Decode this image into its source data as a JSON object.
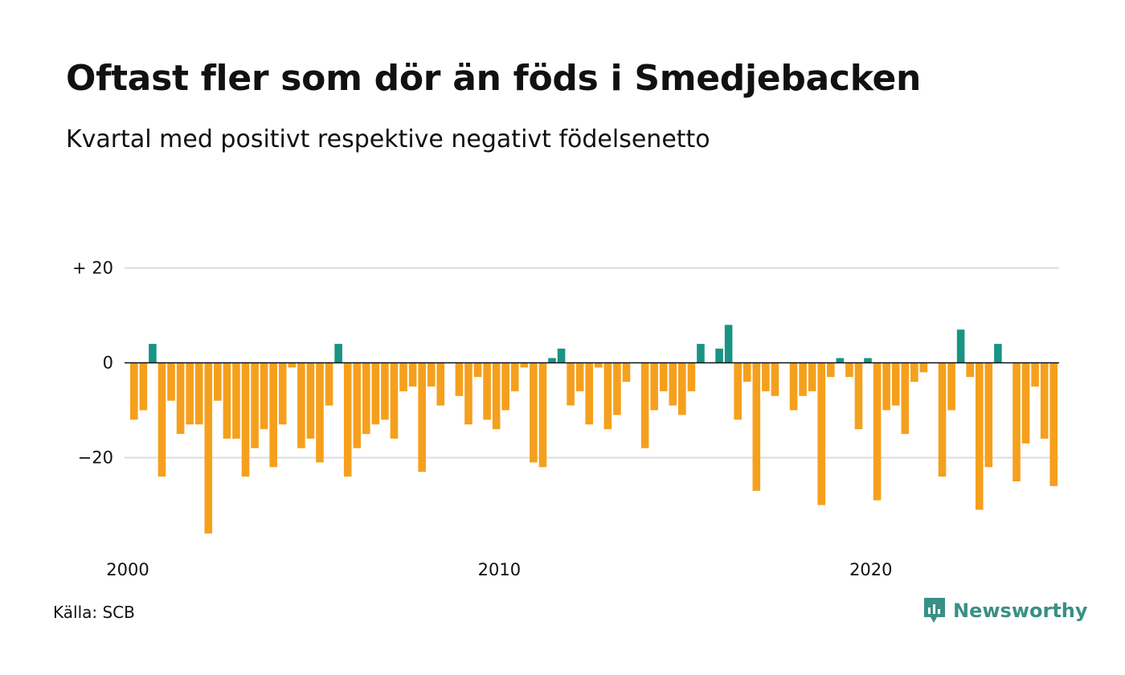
{
  "title": "Oftast fler som dör än föds i Smedjebacken",
  "subtitle": "Kvartal med positivt respektive negativt födelsenetto",
  "source": "Källa: SCB",
  "brand": {
    "name": "Newsworthy",
    "icon": "newsworthy-logo-icon"
  },
  "colors": {
    "positive": "#1a9484",
    "negative": "#f5a01d",
    "grid": "#dcdcdc",
    "axis": "#111111"
  },
  "chart_data": {
    "type": "bar",
    "xlabel": "",
    "ylabel": "",
    "ylim": [
      -37,
      20
    ],
    "y_ticks": [
      {
        "value": 20,
        "label": "+ 20"
      },
      {
        "value": 0,
        "label": "0"
      },
      {
        "value": -20,
        "label": "−20"
      }
    ],
    "x_ticks": [
      {
        "value": 2000,
        "label": "2000"
      },
      {
        "value": 2010,
        "label": "2010"
      },
      {
        "value": 2020,
        "label": "2020"
      }
    ],
    "x_start": "2000-Q1",
    "grid": true,
    "legend": "none",
    "values": [
      -12,
      -10,
      4,
      -24,
      -8,
      -15,
      -13,
      -13,
      -36,
      -8,
      -16,
      -16,
      -24,
      -18,
      -14,
      -22,
      -13,
      -1,
      -18,
      -16,
      -21,
      -9,
      4,
      -24,
      -18,
      -15,
      -13,
      -12,
      -16,
      -6,
      -5,
      -23,
      -5,
      -9,
      0,
      -7,
      -13,
      -3,
      -12,
      -14,
      -10,
      -6,
      -1,
      -21,
      -22,
      1,
      3,
      -9,
      -6,
      -13,
      -1,
      -14,
      -11,
      -4,
      0,
      -18,
      -10,
      -6,
      -9,
      -11,
      -6,
      4,
      0,
      3,
      8,
      -12,
      -4,
      -27,
      -6,
      -7,
      0,
      -10,
      -7,
      -6,
      -30,
      -3,
      1,
      -3,
      -14,
      1,
      -29,
      -10,
      -9,
      -15,
      -4,
      -2,
      0,
      -24,
      -10,
      7,
      -3,
      -31,
      -22,
      4,
      0,
      -25,
      -17,
      -5,
      -16,
      -26
    ]
  }
}
